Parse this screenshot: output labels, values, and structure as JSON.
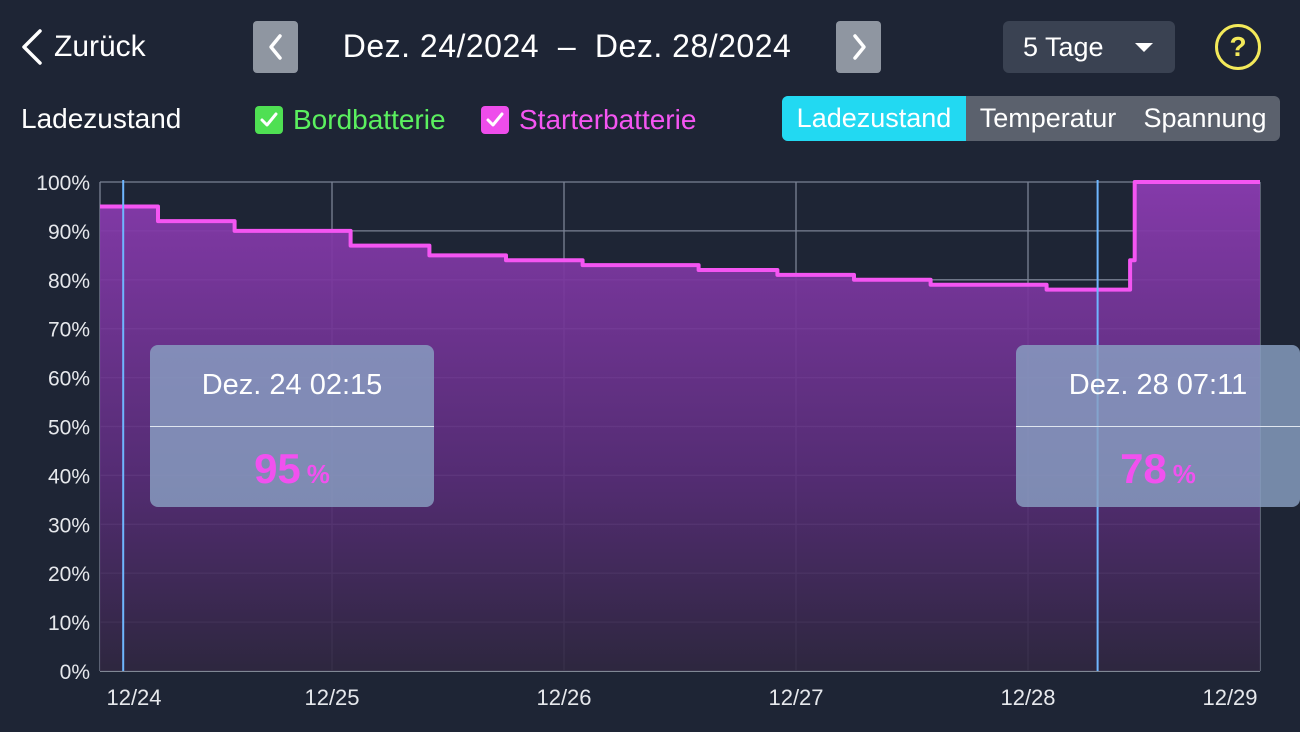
{
  "header": {
    "back_label": "Zurück",
    "date_start": "Dez. 24/2024",
    "date_separator": "–",
    "date_end": "Dez. 28/2024",
    "range_label": "5 Tage",
    "help_symbol": "?"
  },
  "legend": {
    "title": "Ladezustand",
    "items": [
      {
        "label": "Bordbatterie",
        "checked": true,
        "color": "#5bf05f"
      },
      {
        "label": "Starterbatterie",
        "checked": true,
        "color": "#f455f2"
      }
    ]
  },
  "tabs": [
    {
      "label": "Ladezustand",
      "active": true
    },
    {
      "label": "Temperatur",
      "active": false
    },
    {
      "label": "Spannung",
      "active": false
    }
  ],
  "tooltips": {
    "left": {
      "time": "Dez. 24 02:15",
      "value": "95",
      "unit": "%"
    },
    "right": {
      "time": "Dez. 28 07:11",
      "value": "78",
      "unit": "%"
    }
  },
  "chart_data": {
    "type": "area",
    "x_tick_labels": [
      "12/24",
      "12/25",
      "12/26",
      "12/27",
      "12/28",
      "12/29"
    ],
    "y_tick_labels": [
      "100%",
      "90%",
      "80%",
      "70%",
      "60%",
      "50%",
      "40%",
      "30%",
      "20%",
      "10%",
      "0%"
    ],
    "ylim": [
      0,
      100
    ],
    "xlim_days": [
      0,
      5
    ],
    "grid": true,
    "series": [
      {
        "name": "Starterbatterie",
        "color": "#f455f2",
        "step_points": [
          [
            0.0,
            95
          ],
          [
            0.25,
            95
          ],
          [
            0.25,
            92
          ],
          [
            0.58,
            92
          ],
          [
            0.58,
            90
          ],
          [
            1.08,
            90
          ],
          [
            1.08,
            87
          ],
          [
            1.42,
            87
          ],
          [
            1.42,
            85
          ],
          [
            1.75,
            85
          ],
          [
            1.75,
            84
          ],
          [
            2.08,
            84
          ],
          [
            2.08,
            83
          ],
          [
            2.58,
            83
          ],
          [
            2.58,
            82
          ],
          [
            2.92,
            82
          ],
          [
            2.92,
            81
          ],
          [
            3.25,
            81
          ],
          [
            3.25,
            80
          ],
          [
            3.58,
            80
          ],
          [
            3.58,
            79
          ],
          [
            4.08,
            79
          ],
          [
            4.08,
            78
          ],
          [
            4.44,
            78
          ],
          [
            4.44,
            84
          ],
          [
            4.46,
            84
          ],
          [
            4.46,
            100
          ],
          [
            5.0,
            100
          ]
        ]
      }
    ],
    "cursors": [
      {
        "x_days": 0.1,
        "label": "Dez. 24 02:15",
        "value": 95
      },
      {
        "x_days": 4.3,
        "label": "Dez. 28 07:11",
        "value": 78
      }
    ],
    "cursor_color": "#6fb6ff"
  }
}
